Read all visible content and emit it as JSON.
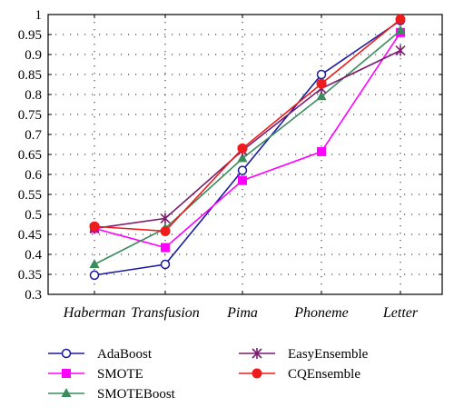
{
  "chart_data": {
    "type": "line",
    "categories": [
      "Haberman",
      "Transfusion",
      "Pima",
      "Phoneme",
      "Letter"
    ],
    "ylim": [
      0.3,
      1.0
    ],
    "yticks": [
      "0.3",
      "0.35",
      "0.4",
      "0.45",
      "0.5",
      "0.55",
      "0.6",
      "0.65",
      "0.7",
      "0.75",
      "0.8",
      "0.85",
      "0.9",
      "0.95",
      "1"
    ],
    "grid": true,
    "legend_position": "bottom",
    "series": [
      {
        "name": "AdaBoost",
        "values": [
          0.348,
          0.375,
          0.61,
          0.85,
          0.985
        ],
        "color": "#1a1aa0",
        "marker": "open-circle"
      },
      {
        "name": "SMOTE",
        "values": [
          0.465,
          0.417,
          0.585,
          0.657,
          0.955
        ],
        "color": "#ff00ff",
        "marker": "square"
      },
      {
        "name": "SMOTEBoost",
        "values": [
          0.375,
          0.465,
          0.64,
          0.795,
          0.96
        ],
        "color": "#3a8c5c",
        "marker": "triangle"
      },
      {
        "name": "EasyEnsemble",
        "values": [
          0.465,
          0.49,
          0.66,
          0.815,
          0.91
        ],
        "color": "#7a1c6e",
        "marker": "star"
      },
      {
        "name": "CQEnsemble",
        "values": [
          0.47,
          0.458,
          0.665,
          0.827,
          0.988
        ],
        "color": "#ee1c1c",
        "marker": "filled-circle"
      }
    ]
  }
}
